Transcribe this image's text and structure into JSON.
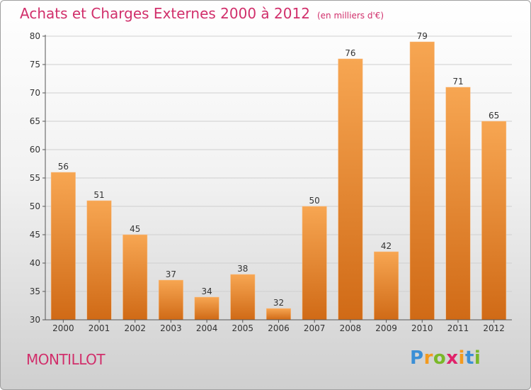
{
  "colors": {
    "title": "#d12f6b",
    "bar_top": "#f7a652",
    "bar_bottom": "#d06a16",
    "grid": "#cfcfcf",
    "axis": "#555555"
  },
  "brand": {
    "letters": [
      {
        "ch": "P",
        "color": "#3b8fd6"
      },
      {
        "ch": "r",
        "color": "#f39a1e"
      },
      {
        "ch": "o",
        "color": "#7ab829"
      },
      {
        "ch": "x",
        "color": "#e0226a"
      },
      {
        "ch": "i",
        "color": "#f39a1e"
      },
      {
        "ch": "t",
        "color": "#3b8fd6"
      },
      {
        "ch": "i",
        "color": "#7ab829"
      }
    ]
  },
  "location": "MONTILLOT",
  "chart_data": {
    "type": "bar",
    "title": "Achats et Charges Externes 2000 à 2012",
    "subtitle": "(en milliers d'€)",
    "categories": [
      "2000",
      "2001",
      "2002",
      "2003",
      "2004",
      "2005",
      "2006",
      "2007",
      "2008",
      "2009",
      "2010",
      "2011",
      "2012"
    ],
    "values": [
      56,
      51,
      45,
      37,
      34,
      38,
      32,
      50,
      76,
      42,
      79,
      71,
      65
    ],
    "ylim": [
      30,
      80
    ],
    "yticks": [
      30,
      35,
      40,
      45,
      50,
      55,
      60,
      65,
      70,
      75,
      80
    ],
    "xlabel": "",
    "ylabel": "",
    "grid": true
  }
}
